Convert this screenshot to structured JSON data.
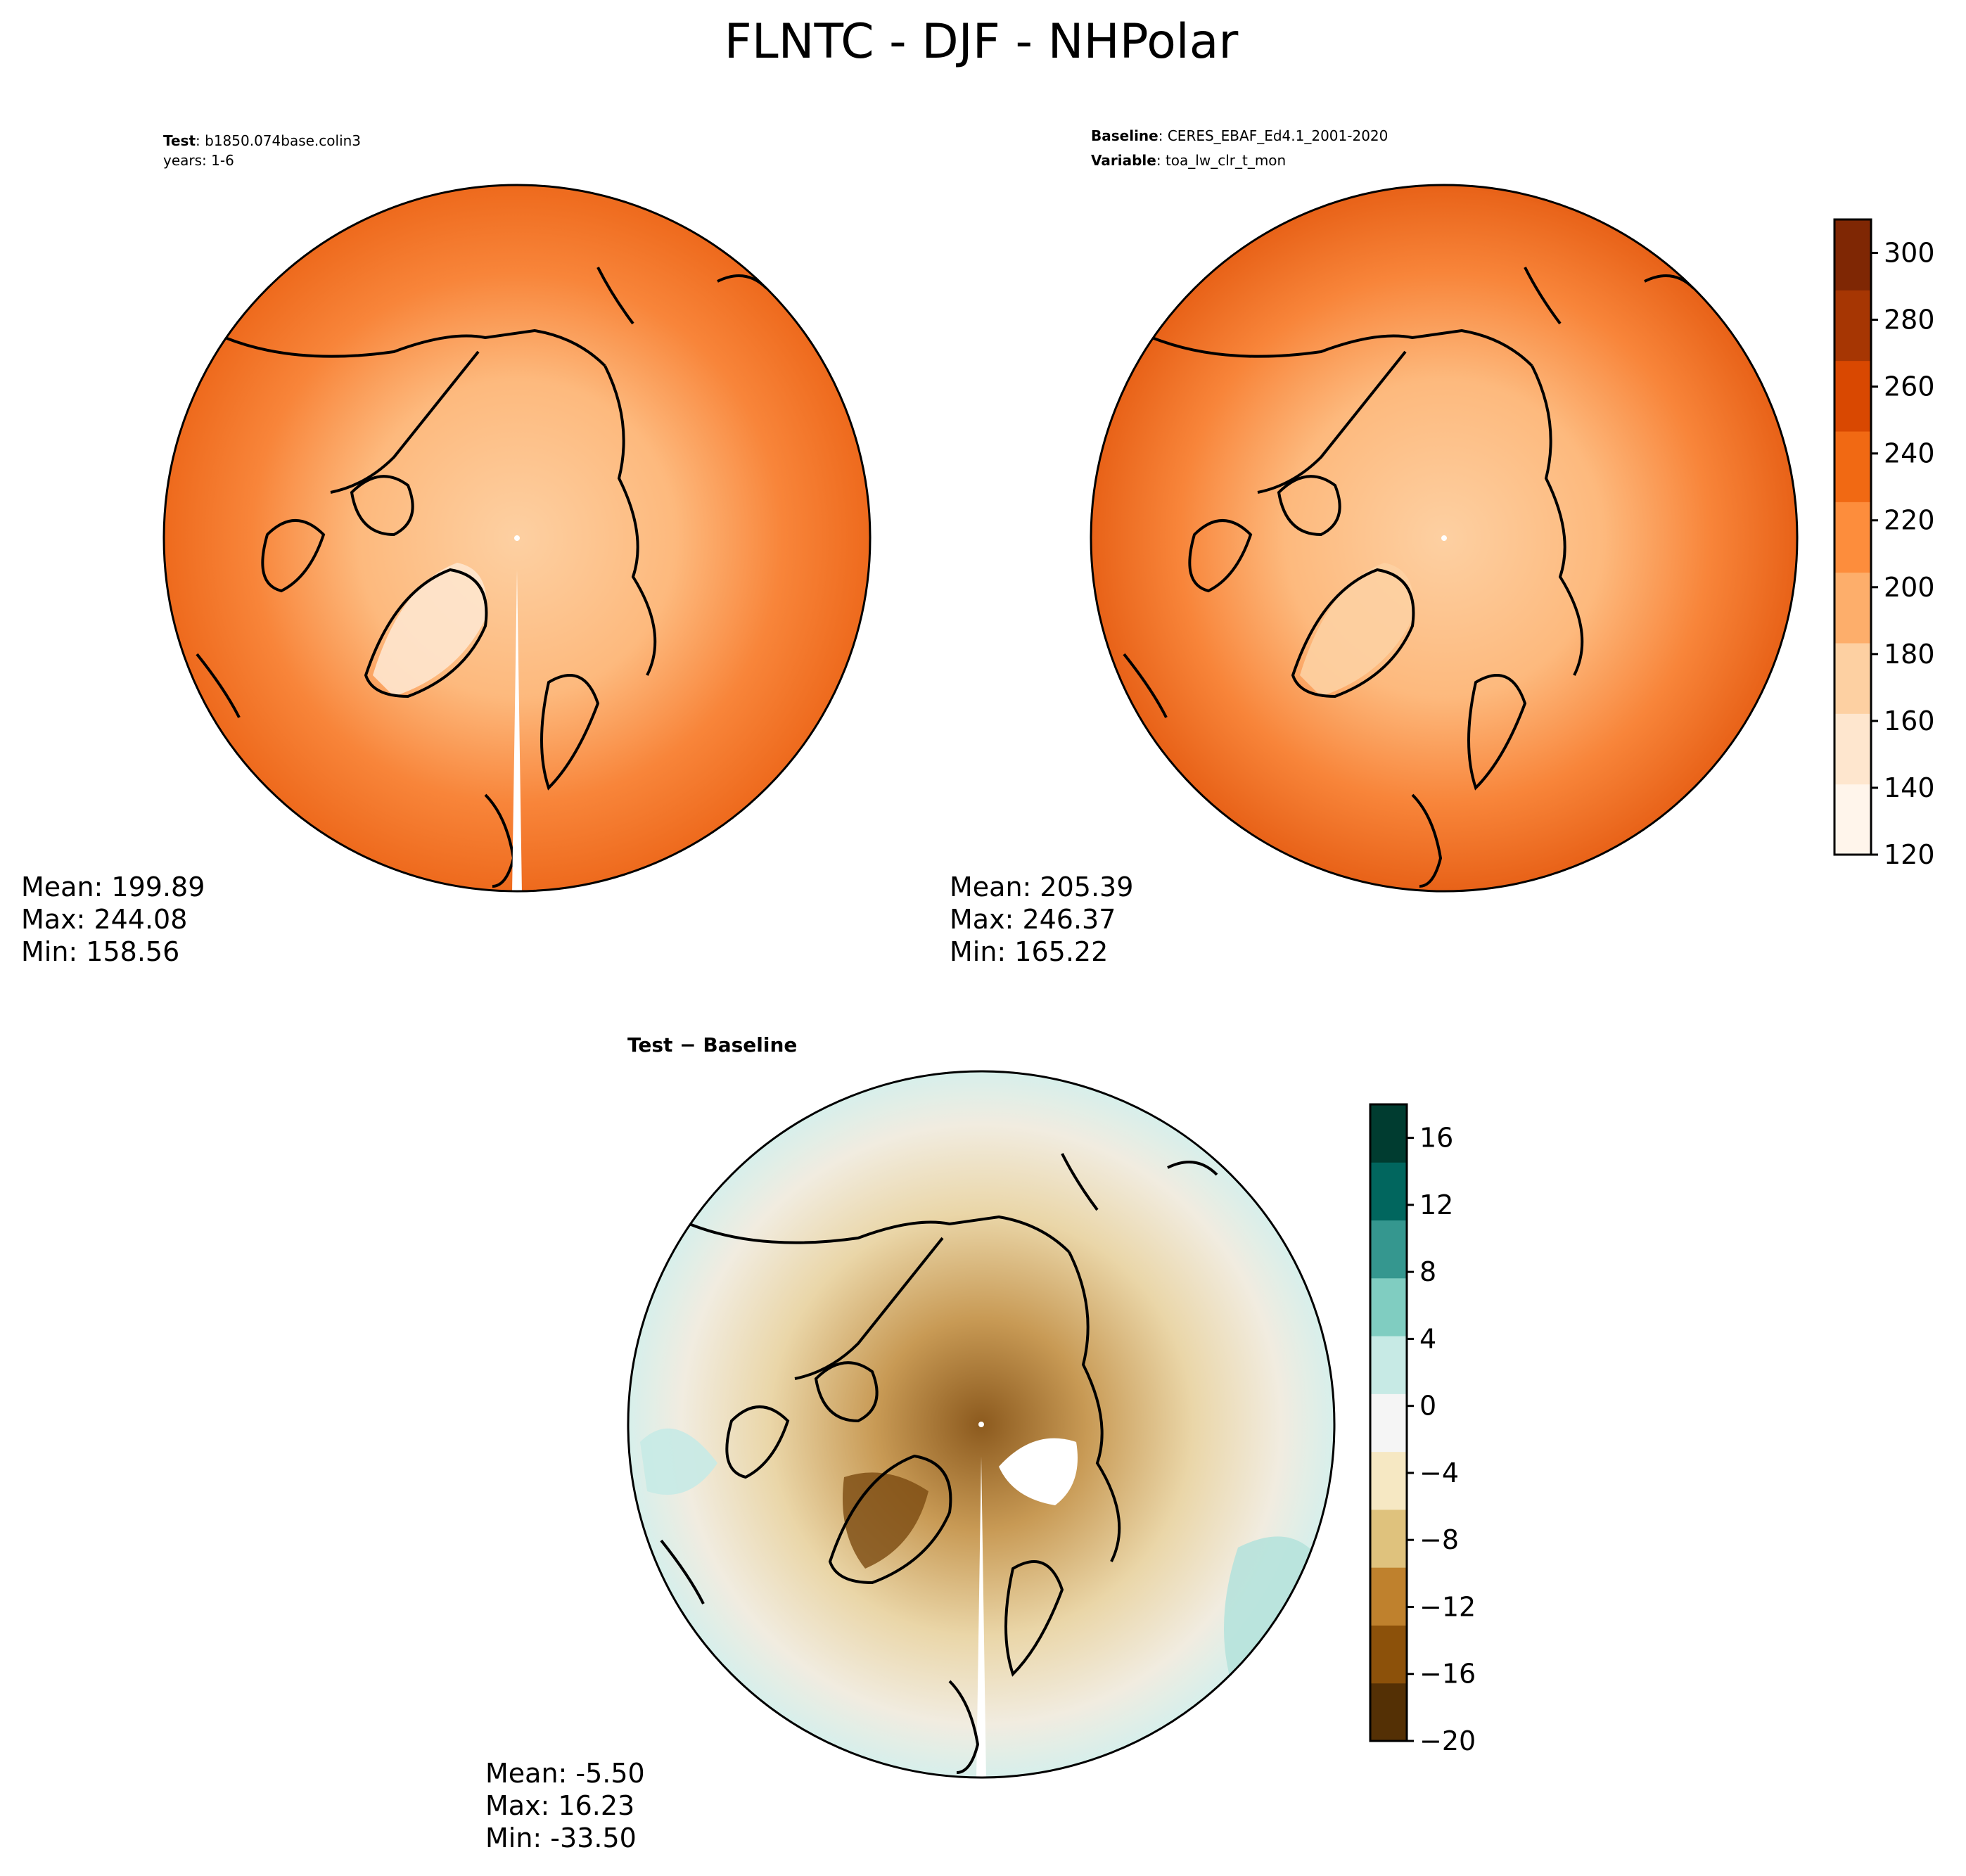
{
  "figure": {
    "title": "FLNTC - DJF - NHPolar"
  },
  "panels": {
    "test": {
      "header_label": "Test",
      "header_value": "b1850.074base.colin3",
      "header_line2": "years: 1-6",
      "stats": {
        "mean": "Mean: 199.89",
        "max": "Max: 244.08",
        "min": "Min: 158.56"
      }
    },
    "baseline": {
      "header_label": "Baseline",
      "header_value": "CERES_EBAF_Ed4.1_2001-2020",
      "header2_label": "Variable",
      "header2_value": "toa_lw_clr_t_mon",
      "stats": {
        "mean": "Mean: 205.39",
        "max": "Max: 246.37",
        "min": "Min: 165.22"
      }
    },
    "diff": {
      "title": "Test − Baseline",
      "stats": {
        "mean": "Mean: -5.50",
        "max": "Max: 16.23",
        "min": "Min: -33.50"
      }
    }
  },
  "colorbars": {
    "main": {
      "ticks": [
        "120",
        "140",
        "160",
        "180",
        "200",
        "220",
        "240",
        "260",
        "280",
        "300"
      ],
      "colors": [
        "#fff5eb",
        "#fee6ce",
        "#fdd0a2",
        "#fdae6b",
        "#fd8d3c",
        "#f16913",
        "#d94801",
        "#a63603",
        "#7f2704"
      ]
    },
    "diff": {
      "ticks": [
        "−20",
        "−16",
        "−12",
        "−8",
        "−4",
        "0",
        "4",
        "8",
        "12",
        "16"
      ],
      "colors": [
        "#543005",
        "#8c510a",
        "#bf812d",
        "#dfc27d",
        "#f6e8c3",
        "#f5f5f5",
        "#c7eae5",
        "#80cdc1",
        "#35978f",
        "#01665e",
        "#003c30"
      ]
    }
  }
}
